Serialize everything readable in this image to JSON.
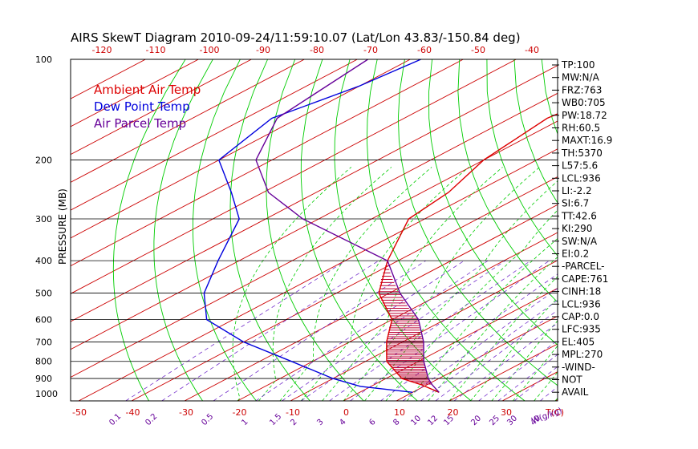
{
  "chart_data": {
    "type": "line",
    "title": "AIRS SkewT Diagram 2010-09-24/11:59:10.07 (Lat/Lon 43.83/-150.84 deg)",
    "ylabel": "PRESSURE (MB)",
    "top_temp_ticks": [
      "-120",
      "-110",
      "-100",
      "-90",
      "-80",
      "-70",
      "-60",
      "-50",
      "-40"
    ],
    "bottom_temp_ticks": [
      "-50",
      "-40",
      "-30",
      "-20",
      "-10",
      "0",
      "10",
      "20",
      "30"
    ],
    "bottom_temp_unit": "T(C)",
    "pressure_ticks": [
      "100",
      "200",
      "300",
      "400",
      "500",
      "600",
      "700",
      "800",
      "900",
      "1000"
    ],
    "mixing_ratio_ticks": [
      "0.1",
      "0.2",
      "0.5",
      "1",
      "1.5",
      "2",
      "3",
      "4",
      "6",
      "8",
      "10",
      "12",
      "15",
      "20",
      "25",
      "30",
      "40"
    ],
    "mixing_ratio_unit": "W(g/kg)",
    "legend": [
      {
        "label": "Ambient Air Temp",
        "color": "#dd0000"
      },
      {
        "label": "Dew Point Temp",
        "color": "#0000dd"
      },
      {
        "label": "Air Parcel Temp",
        "color": "#660099"
      }
    ],
    "series": [
      {
        "name": "Ambient Air Temp",
        "color": "#dd0000",
        "points": [
          [
            100,
            -57
          ],
          [
            120,
            -60
          ],
          [
            150,
            -63
          ],
          [
            200,
            -60
          ],
          [
            250,
            -55
          ],
          [
            300,
            -53
          ],
          [
            400,
            -42
          ],
          [
            500,
            -32
          ],
          [
            600,
            -20
          ],
          [
            700,
            -13
          ],
          [
            800,
            -6
          ],
          [
            900,
            3
          ],
          [
            940,
            9
          ],
          [
            990,
            15
          ]
        ]
      },
      {
        "name": "Dew Point Temp",
        "color": "#0000dd",
        "points": [
          [
            100,
            -108
          ],
          [
            120,
            -110
          ],
          [
            150,
            -115
          ],
          [
            200,
            -110
          ],
          [
            250,
            -96
          ],
          [
            300,
            -85
          ],
          [
            400,
            -74
          ],
          [
            500,
            -65
          ],
          [
            600,
            -55
          ],
          [
            700,
            -40
          ],
          [
            800,
            -24
          ],
          [
            900,
            -10
          ],
          [
            950,
            -2
          ],
          [
            990,
            10
          ]
        ]
      },
      {
        "name": "Air Parcel Temp",
        "color": "#660099",
        "points": [
          [
            100,
            -118
          ],
          [
            150,
            -114
          ],
          [
            200,
            -103
          ],
          [
            250,
            -89
          ],
          [
            300,
            -73
          ],
          [
            400,
            -42
          ],
          [
            500,
            -28
          ],
          [
            600,
            -15
          ],
          [
            700,
            -6
          ],
          [
            800,
            1
          ],
          [
            900,
            8
          ],
          [
            940,
            11
          ],
          [
            990,
            15
          ]
        ]
      }
    ],
    "indices": [
      "TP:100",
      "MW:N/A",
      "FRZ:763",
      "WB0:705",
      "PW:18.72",
      "RH:60.5",
      "MAXT:16.9",
      "TH:5370",
      "L57:5.6",
      "LCL:936",
      "LI:-2.2",
      "SI:6.7",
      "TT:42.6",
      "KI:290",
      "SW:N/A",
      "EI:0.2",
      "-PARCEL-",
      "CAPE:761",
      "CINH:18",
      "LCL:936",
      "CAP:0.0",
      "LFC:935",
      "EL:405",
      "MPL:270",
      "-WIND-",
      "NOT",
      "AVAIL"
    ]
  },
  "colors": {
    "isotherm": "#cc0000",
    "dry_adiabat": "#00cc00",
    "moist_adiabat": "#00cc00",
    "mixing_ratio": "#7733cc",
    "isobar": "#000000",
    "cape_hatch": "#bb0033"
  }
}
